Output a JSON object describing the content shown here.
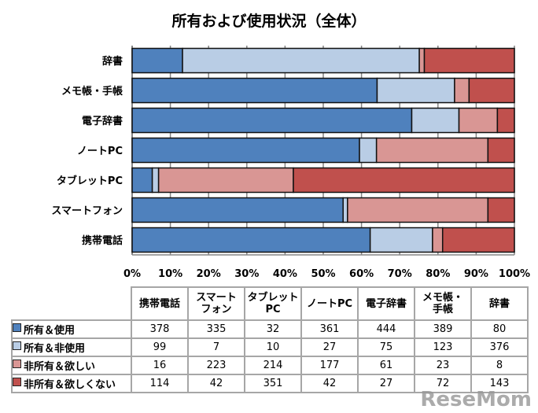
{
  "chart_data": {
    "type": "bar",
    "orientation": "horizontal",
    "stacked": "percent",
    "title": "所有および使用状況（全体）",
    "categories": [
      "辞書",
      "メモ帳・手帳",
      "電子辞書",
      "ノートPC",
      "タブレットPC",
      "スマートフォン",
      "携帯電話"
    ],
    "xticks": [
      "0%",
      "10%",
      "20%",
      "30%",
      "40%",
      "50%",
      "60%",
      "70%",
      "80%",
      "90%",
      "100%"
    ],
    "xlim": [
      0,
      100
    ],
    "grid": "vertical",
    "series": [
      {
        "name": "所有＆使用",
        "color": "#4f81bd",
        "values": [
          80,
          389,
          444,
          361,
          32,
          335,
          378
        ]
      },
      {
        "name": "所有＆非使用",
        "color": "#b9cde5",
        "values": [
          376,
          123,
          75,
          27,
          10,
          7,
          99
        ]
      },
      {
        "name": "非所有＆欲しい",
        "color": "#d99694",
        "values": [
          8,
          23,
          61,
          177,
          214,
          223,
          16
        ]
      },
      {
        "name": "非所有＆欲しくない",
        "color": "#c0504d",
        "values": [
          143,
          72,
          27,
          42,
          351,
          42,
          114
        ]
      }
    ],
    "table": {
      "headers": [
        "携帯電話",
        "スマート\nフォン",
        "タブレット\nPC",
        "ノートPC",
        "電子辞書",
        "メモ帳・\n手帳",
        "辞書"
      ],
      "order": [
        6,
        5,
        4,
        3,
        2,
        1,
        0
      ]
    }
  },
  "watermark": "ReseMom"
}
